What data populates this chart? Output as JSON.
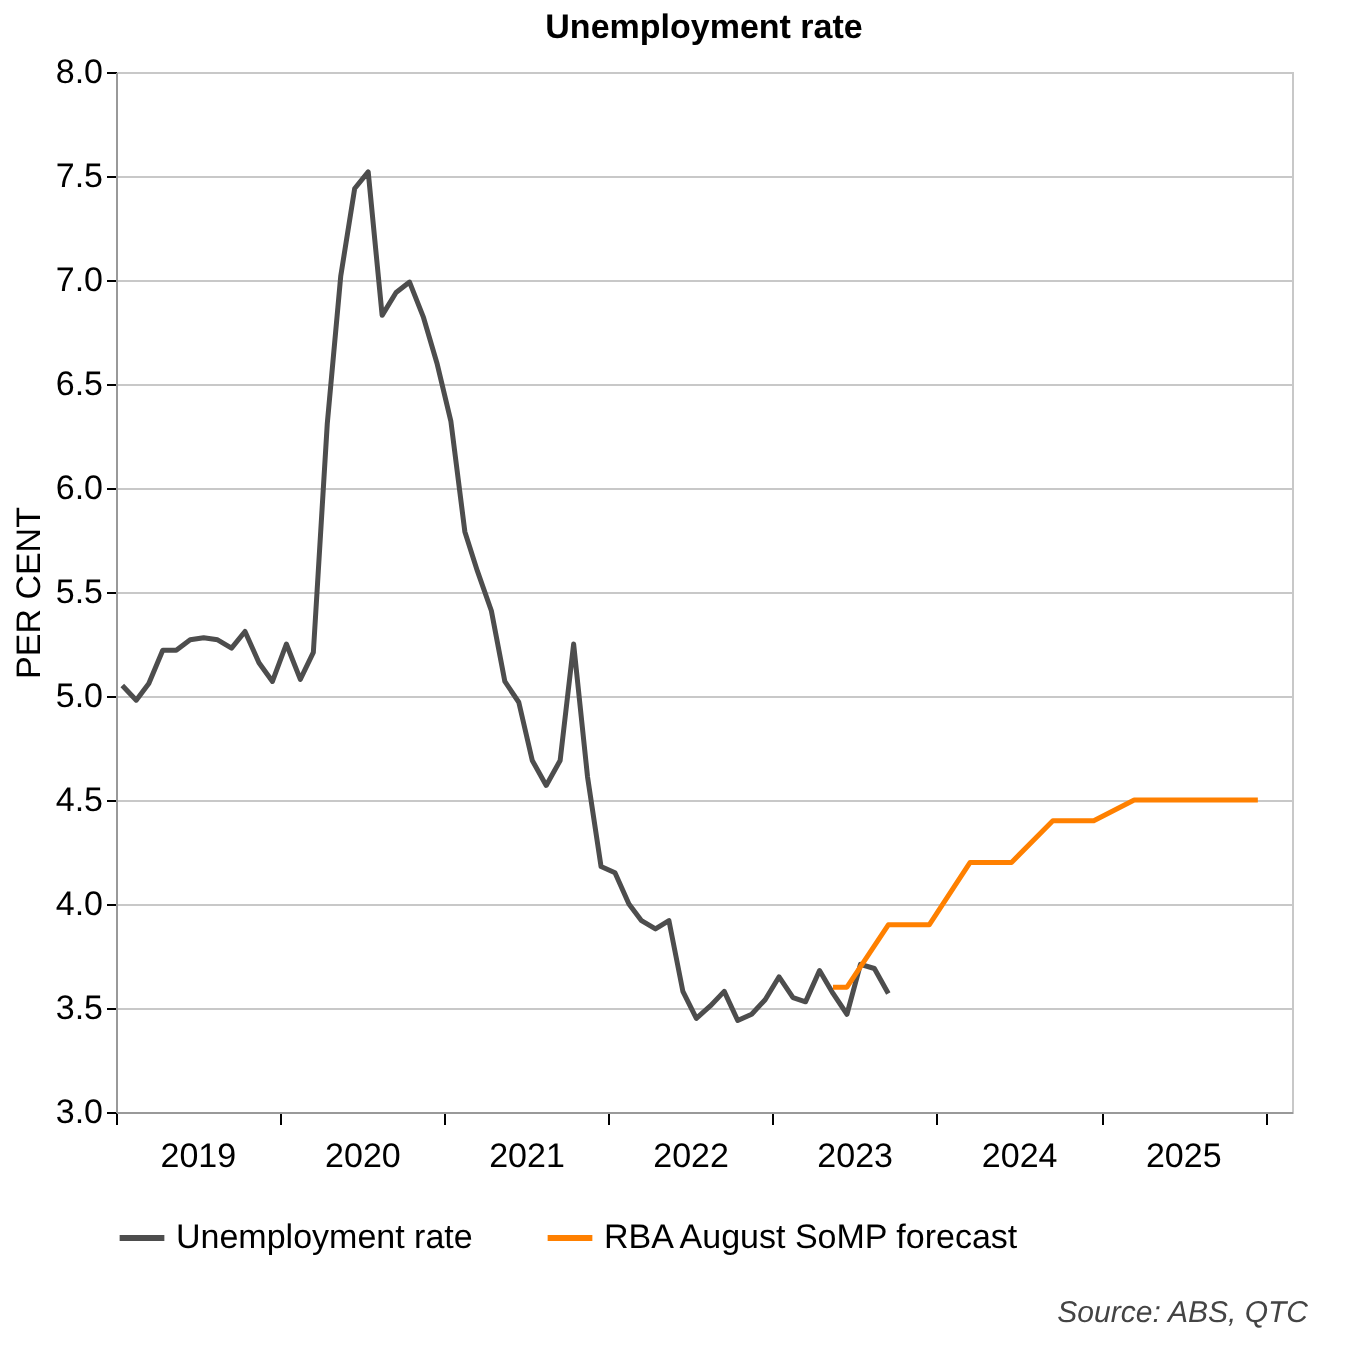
{
  "chart_data": {
    "type": "line",
    "title": "Unemployment rate",
    "ylabel": "PER CENT",
    "xlim": [
      "2019-01-01",
      "2026-03-01"
    ],
    "xticks": [
      {
        "value": "2019-01-01",
        "label": null
      },
      {
        "value": "2019-07-01",
        "label": "2019"
      },
      {
        "value": "2020-01-01",
        "label": null
      },
      {
        "value": "2020-07-01",
        "label": "2020"
      },
      {
        "value": "2021-01-01",
        "label": null
      },
      {
        "value": "2021-07-01",
        "label": "2021"
      },
      {
        "value": "2022-01-01",
        "label": null
      },
      {
        "value": "2022-07-01",
        "label": "2022"
      },
      {
        "value": "2023-01-01",
        "label": null
      },
      {
        "value": "2023-07-01",
        "label": "2023"
      },
      {
        "value": "2024-01-01",
        "label": null
      },
      {
        "value": "2024-07-01",
        "label": "2024"
      },
      {
        "value": "2025-01-01",
        "label": null
      },
      {
        "value": "2025-07-01",
        "label": "2025"
      },
      {
        "value": "2026-01-01",
        "label": null
      }
    ],
    "ylim": [
      3.0,
      8.0
    ],
    "yticks": [
      {
        "value": 3,
        "label": "3.0"
      },
      {
        "value": 3.5,
        "label": "3.5"
      },
      {
        "value": 4,
        "label": "4.0"
      },
      {
        "value": 4.5,
        "label": "4.5"
      },
      {
        "value": 5,
        "label": "5.0"
      },
      {
        "value": 5.5,
        "label": "5.5"
      },
      {
        "value": 6,
        "label": "6.0"
      },
      {
        "value": 6.5,
        "label": "6.5"
      },
      {
        "value": 7,
        "label": "7.0"
      },
      {
        "value": 7.5,
        "label": "7.5"
      },
      {
        "value": 8,
        "label": "8.0"
      }
    ],
    "grid": "y",
    "legend": "bottom",
    "line_style": "solid",
    "marker": "none",
    "annotations": [
      "Source: ABS, QTC"
    ],
    "series": [
      {
        "name": "Unemployment rate",
        "color": "#4d4d4d",
        "x": [
          "2019-01-15",
          "2019-02-15",
          "2019-03-15",
          "2019-04-15",
          "2019-05-15",
          "2019-06-15",
          "2019-07-15",
          "2019-08-15",
          "2019-09-15",
          "2019-10-15",
          "2019-11-15",
          "2019-12-15",
          "2020-01-15",
          "2020-02-15",
          "2020-03-15",
          "2020-04-15",
          "2020-05-15",
          "2020-06-15",
          "2020-07-15",
          "2020-08-15",
          "2020-09-15",
          "2020-10-15",
          "2020-11-15",
          "2020-12-15",
          "2021-01-15",
          "2021-02-15",
          "2021-03-15",
          "2021-04-15",
          "2021-05-15",
          "2021-06-15",
          "2021-07-15",
          "2021-08-15",
          "2021-09-15",
          "2021-10-15",
          "2021-11-15",
          "2021-12-15",
          "2022-01-15",
          "2022-02-15",
          "2022-03-15",
          "2022-04-15",
          "2022-05-15",
          "2022-06-15",
          "2022-07-15",
          "2022-08-15",
          "2022-09-15",
          "2022-10-15",
          "2022-11-15",
          "2022-12-15",
          "2023-01-15",
          "2023-02-15",
          "2023-03-15",
          "2023-04-15",
          "2023-05-15",
          "2023-06-15",
          "2023-07-15",
          "2023-08-15",
          "2023-09-15"
        ],
        "values": [
          5.05,
          4.98,
          5.06,
          5.22,
          5.22,
          5.27,
          5.28,
          5.27,
          5.23,
          5.31,
          5.16,
          5.07,
          5.25,
          5.08,
          5.21,
          6.31,
          7.02,
          7.44,
          7.52,
          6.83,
          6.94,
          6.99,
          6.82,
          6.6,
          6.32,
          5.79,
          5.6,
          5.41,
          5.07,
          4.97,
          4.69,
          4.57,
          4.69,
          5.25,
          4.61,
          4.18,
          4.15,
          4.0,
          3.92,
          3.88,
          3.92,
          3.58,
          3.45,
          3.51,
          3.58,
          3.44,
          3.47,
          3.54,
          3.65,
          3.55,
          3.53,
          3.68,
          3.57,
          3.47,
          3.71,
          3.69,
          3.57
        ]
      },
      {
        "name": "RBA August SoMP forecast",
        "color": "#ff8000",
        "x": [
          "2023-05-15",
          "2023-06-15",
          "2023-09-15",
          "2023-12-15",
          "2024-03-15",
          "2024-06-15",
          "2024-09-15",
          "2024-12-15",
          "2025-03-15",
          "2025-12-15"
        ],
        "values": [
          3.6,
          3.6,
          3.9,
          3.9,
          4.2,
          4.2,
          4.4,
          4.4,
          4.5,
          4.5
        ]
      }
    ]
  }
}
